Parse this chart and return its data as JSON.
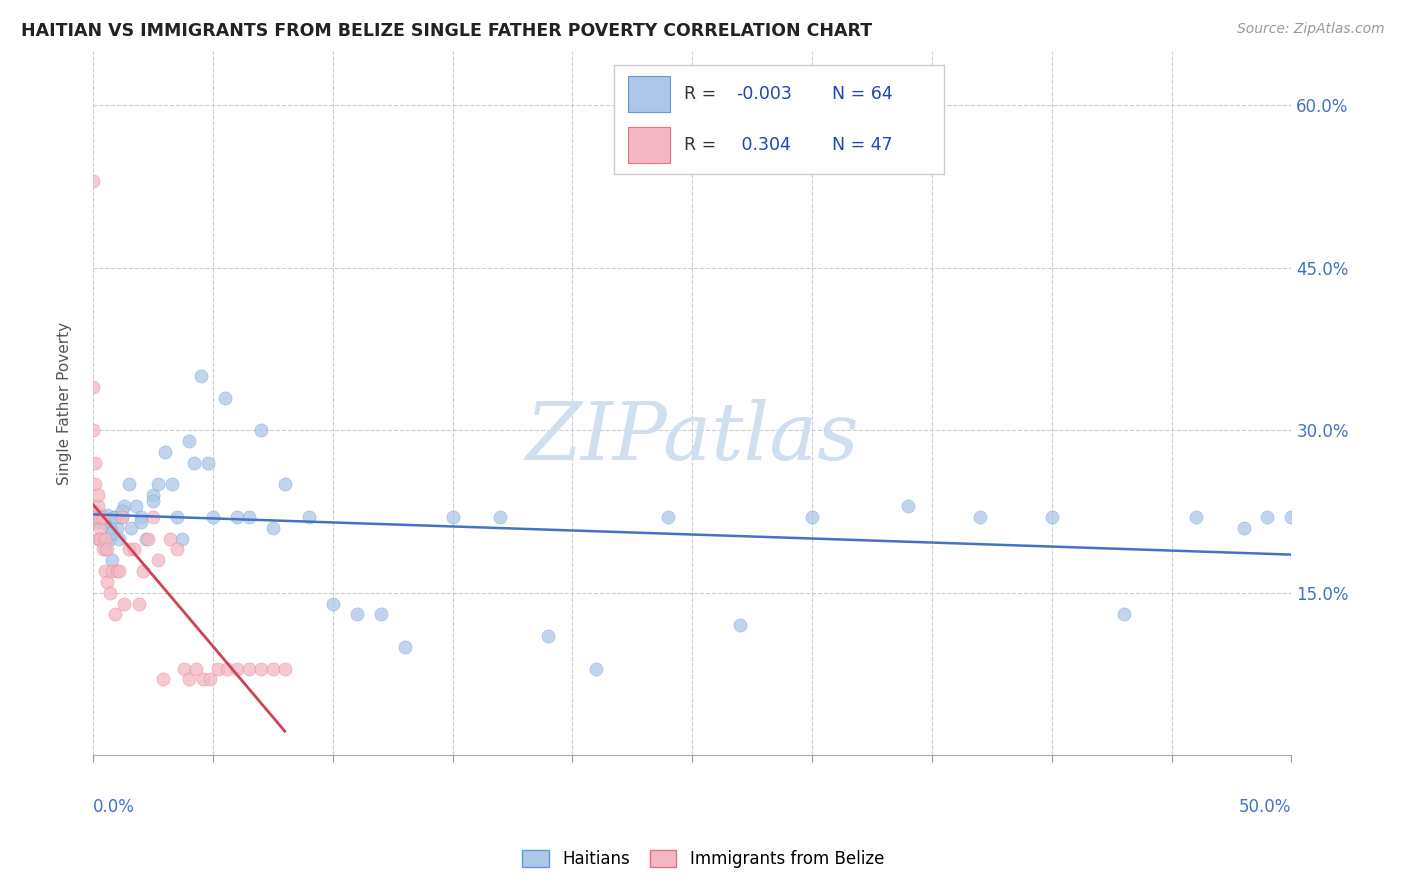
{
  "title": "HAITIAN VS IMMIGRANTS FROM BELIZE SINGLE FATHER POVERTY CORRELATION CHART",
  "source": "Source: ZipAtlas.com",
  "ylabel": "Single Father Poverty",
  "xlim": [
    0.0,
    0.5
  ],
  "ylim": [
    0.0,
    0.65
  ],
  "yticks": [
    0.15,
    0.3,
    0.45,
    0.6
  ],
  "ytick_labels": [
    "15.0%",
    "30.0%",
    "45.0%",
    "60.0%"
  ],
  "xticks_count": 11,
  "blue_R": -0.003,
  "blue_N": 64,
  "pink_R": 0.304,
  "pink_N": 47,
  "blue_fill_color": "#aec6e8",
  "pink_fill_color": "#f4b8c4",
  "blue_edge_color": "#5b9bd5",
  "pink_edge_color": "#e8707a",
  "trend_blue_color": "#4472c4",
  "trend_pink_color": "#cc4455",
  "trend_pink_dash_color": "#e8a0aa",
  "watermark_color": "#d0dff0",
  "legend_R_color": "#2244bb",
  "legend_text_color": "#333333",
  "blue_x": [
    0.002,
    0.003,
    0.004,
    0.005,
    0.006,
    0.007,
    0.008,
    0.009,
    0.01,
    0.011,
    0.012,
    0.013,
    0.015,
    0.016,
    0.018,
    0.02,
    0.022,
    0.025,
    0.027,
    0.03,
    0.033,
    0.035,
    0.037,
    0.04,
    0.042,
    0.045,
    0.048,
    0.05,
    0.055,
    0.06,
    0.065,
    0.07,
    0.075,
    0.08,
    0.09,
    0.1,
    0.11,
    0.12,
    0.13,
    0.15,
    0.17,
    0.19,
    0.21,
    0.24,
    0.27,
    0.3,
    0.34,
    0.37,
    0.4,
    0.43,
    0.46,
    0.48,
    0.49,
    0.5,
    0.003,
    0.005,
    0.007,
    0.009,
    0.001,
    0.004,
    0.008,
    0.012,
    0.02,
    0.025
  ],
  "blue_y": [
    0.215,
    0.22,
    0.2,
    0.215,
    0.222,
    0.2,
    0.18,
    0.22,
    0.21,
    0.2,
    0.22,
    0.23,
    0.25,
    0.21,
    0.23,
    0.22,
    0.2,
    0.24,
    0.25,
    0.28,
    0.25,
    0.22,
    0.2,
    0.29,
    0.27,
    0.35,
    0.27,
    0.22,
    0.33,
    0.22,
    0.22,
    0.3,
    0.21,
    0.25,
    0.22,
    0.14,
    0.13,
    0.13,
    0.1,
    0.22,
    0.22,
    0.11,
    0.08,
    0.22,
    0.12,
    0.22,
    0.23,
    0.22,
    0.22,
    0.13,
    0.22,
    0.21,
    0.22,
    0.22,
    0.2,
    0.19,
    0.21,
    0.22,
    0.225,
    0.215,
    0.205,
    0.225,
    0.215,
    0.235
  ],
  "pink_x": [
    0.0,
    0.0,
    0.0,
    0.001,
    0.001,
    0.001,
    0.002,
    0.002,
    0.002,
    0.003,
    0.003,
    0.003,
    0.004,
    0.004,
    0.005,
    0.005,
    0.006,
    0.006,
    0.007,
    0.008,
    0.009,
    0.01,
    0.011,
    0.012,
    0.013,
    0.015,
    0.017,
    0.019,
    0.021,
    0.023,
    0.025,
    0.027,
    0.029,
    0.032,
    0.035,
    0.038,
    0.04,
    0.043,
    0.046,
    0.049,
    0.052,
    0.056,
    0.06,
    0.065,
    0.07,
    0.075,
    0.08
  ],
  "pink_y": [
    0.53,
    0.34,
    0.3,
    0.27,
    0.25,
    0.22,
    0.2,
    0.23,
    0.24,
    0.21,
    0.22,
    0.2,
    0.19,
    0.22,
    0.2,
    0.17,
    0.19,
    0.16,
    0.15,
    0.17,
    0.13,
    0.17,
    0.17,
    0.22,
    0.14,
    0.19,
    0.19,
    0.14,
    0.17,
    0.2,
    0.22,
    0.18,
    0.07,
    0.2,
    0.19,
    0.08,
    0.07,
    0.08,
    0.07,
    0.07,
    0.08,
    0.08,
    0.08,
    0.08,
    0.08,
    0.08,
    0.08
  ]
}
